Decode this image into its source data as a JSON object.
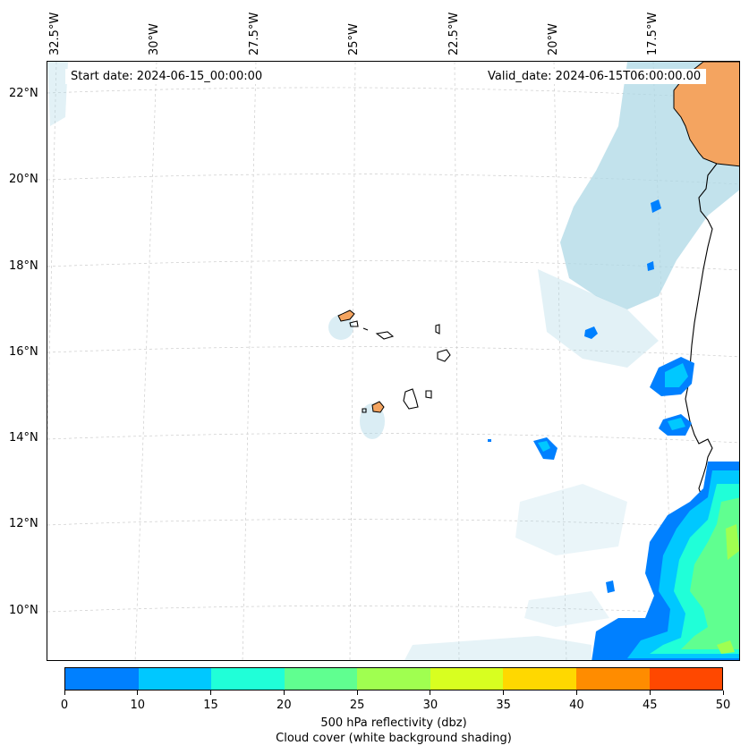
{
  "header": {
    "start_date": "Start date: 2024-06-15_00:00:00",
    "valid_date": "Valid_date: 2024-06-15T06:00:00.00"
  },
  "axes": {
    "longitude_labels": [
      "32.5°W",
      "30°W",
      "27.5°W",
      "25°W",
      "22.5°W",
      "20°W",
      "17.5°W"
    ],
    "latitude_labels": [
      "22°N",
      "20°N",
      "18°N",
      "16°N",
      "14°N",
      "12°N",
      "10°N"
    ]
  },
  "colorbar": {
    "ticks": [
      "0",
      "10",
      "15",
      "20",
      "25",
      "30",
      "35",
      "40",
      "45",
      "50"
    ],
    "colors": [
      "#0080ff",
      "#00c8ff",
      "#20ffd8",
      "#60ff90",
      "#a0ff50",
      "#d8ff20",
      "#ffd800",
      "#ff8c00",
      "#ff4800"
    ],
    "label_line1": "500 hPa reflectivity (dbz)",
    "label_line2": "Cloud cover (white background shading)"
  },
  "colors": {
    "land": "#f4a460",
    "cloud": "#add8e6",
    "coastline": "#000000",
    "gridline": "#cccccc"
  }
}
